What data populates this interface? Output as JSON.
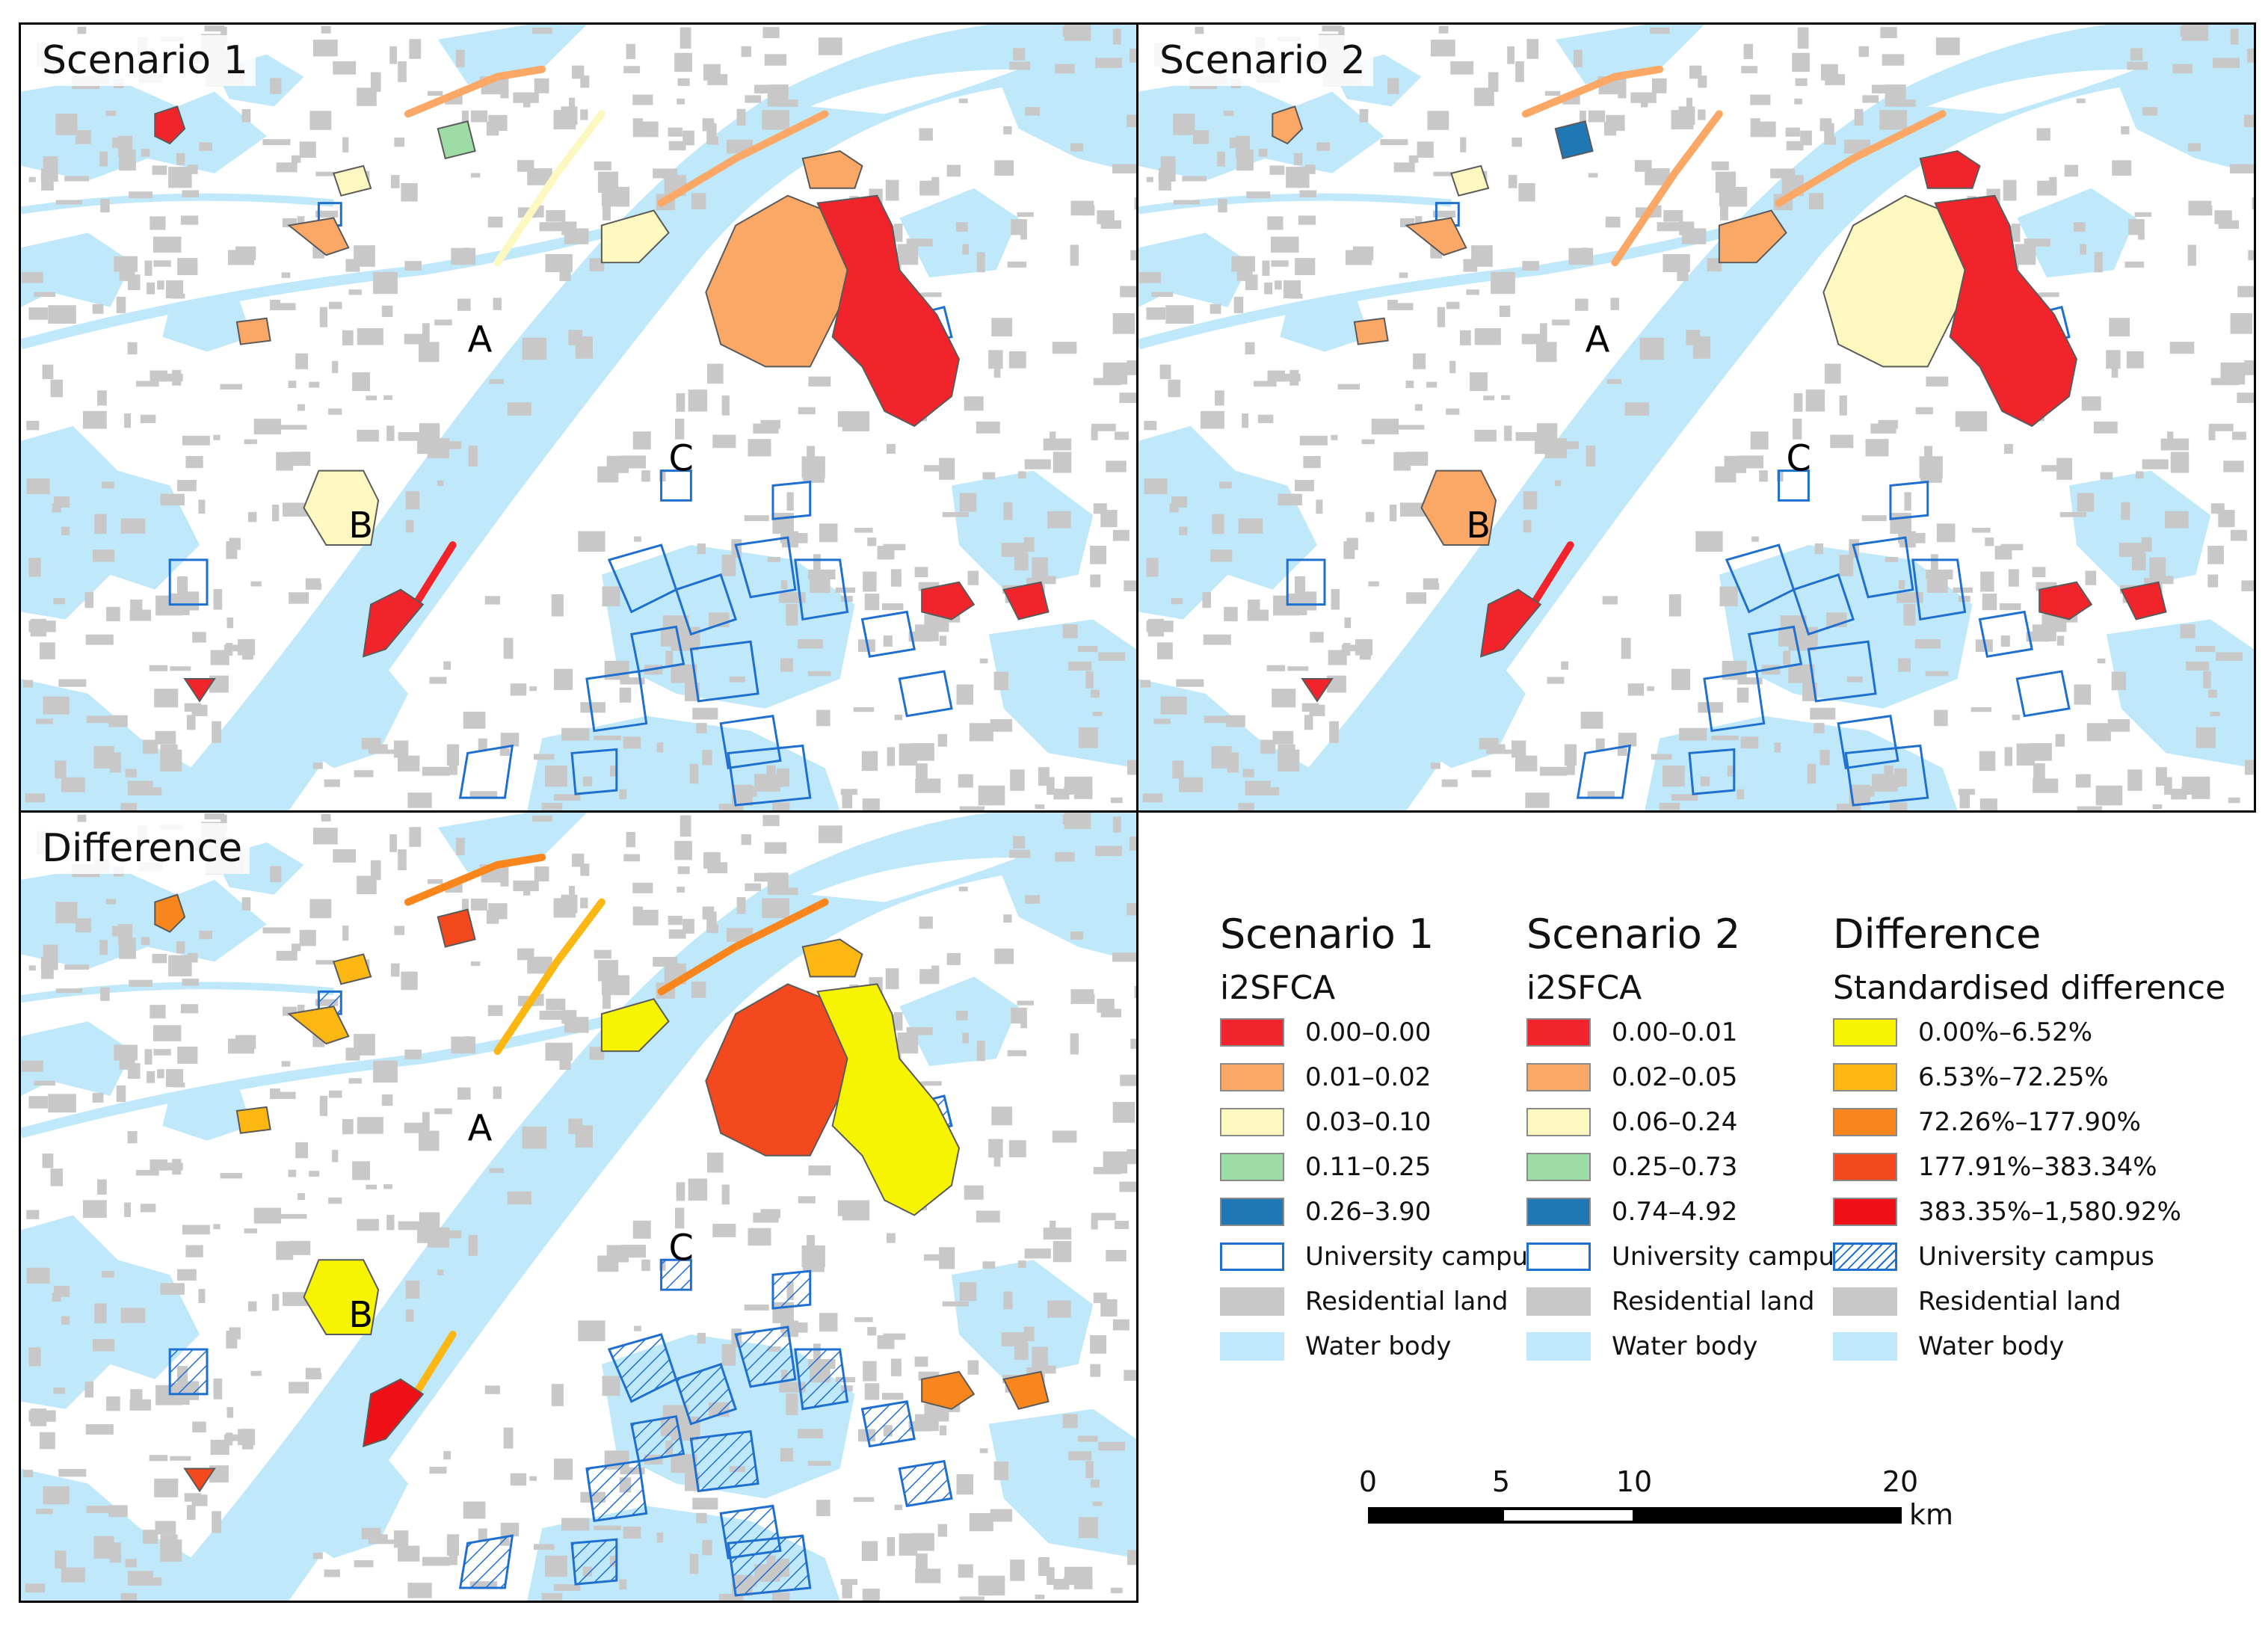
{
  "panels": [
    {
      "id": "s1",
      "title": "Scenario 1",
      "labels": [
        "A",
        "B",
        "C"
      ]
    },
    {
      "id": "s2",
      "title": "Scenario 2",
      "labels": [
        "A",
        "B",
        "C"
      ]
    },
    {
      "id": "diff",
      "title": "Difference",
      "labels": [
        "A",
        "B",
        "C"
      ]
    }
  ],
  "legend": [
    {
      "title": "Scenario 1",
      "subtitle": "i2SFCA",
      "classes": [
        {
          "label": "0.00–0.00",
          "color": "#f0242a"
        },
        {
          "label": "0.01–0.02",
          "color": "#fba765"
        },
        {
          "label": "0.03–0.10",
          "color": "#fdf8c0"
        },
        {
          "label": "0.11–0.25",
          "color": "#9edca5"
        },
        {
          "label": "0.26–3.90",
          "color": "#1f78b4"
        }
      ],
      "extras": [
        {
          "label": "University campus",
          "style": "outline-blue"
        },
        {
          "label": "Residential land",
          "color": "#c8c8c8"
        },
        {
          "label": "Water body",
          "color": "#bfe9fb"
        }
      ]
    },
    {
      "title": "Scenario 2",
      "subtitle": "i2SFCA",
      "classes": [
        {
          "label": "0.00–0.01",
          "color": "#f0242a"
        },
        {
          "label": "0.02–0.05",
          "color": "#fba765"
        },
        {
          "label": "0.06–0.24",
          "color": "#fdf8c0"
        },
        {
          "label": "0.25–0.73",
          "color": "#9edca5"
        },
        {
          "label": "0.74–4.92",
          "color": "#1f78b4"
        }
      ],
      "extras": [
        {
          "label": "University campus",
          "style": "outline-blue"
        },
        {
          "label": "Residential land",
          "color": "#c8c8c8"
        },
        {
          "label": "Water body",
          "color": "#bfe9fb"
        }
      ]
    },
    {
      "title": "Difference",
      "subtitle": "Standardised difference",
      "classes": [
        {
          "label": "0.00%–6.52%",
          "color": "#f6f400"
        },
        {
          "label": "6.53%–72.25%",
          "color": "#fdb713"
        },
        {
          "label": "72.26%–177.90%",
          "color": "#f9861c"
        },
        {
          "label": "177.91%–383.34%",
          "color": "#f4481e"
        },
        {
          "label": "383.35%–1,580.92%",
          "color": "#ef0f17"
        }
      ],
      "extras": [
        {
          "label": "University campus",
          "style": "hatch-blue"
        },
        {
          "label": "Residential land",
          "color": "#c8c8c8"
        },
        {
          "label": "Water body",
          "color": "#bfe9fb"
        }
      ]
    }
  ],
  "scalebar": {
    "ticks": [
      "0",
      "5",
      "10",
      "20"
    ],
    "unit": "km"
  },
  "colors": {
    "water": "#bfe9fb",
    "residential": "#c8c8c8",
    "campus_outline": "#1f6fd1",
    "border": "#000000"
  }
}
